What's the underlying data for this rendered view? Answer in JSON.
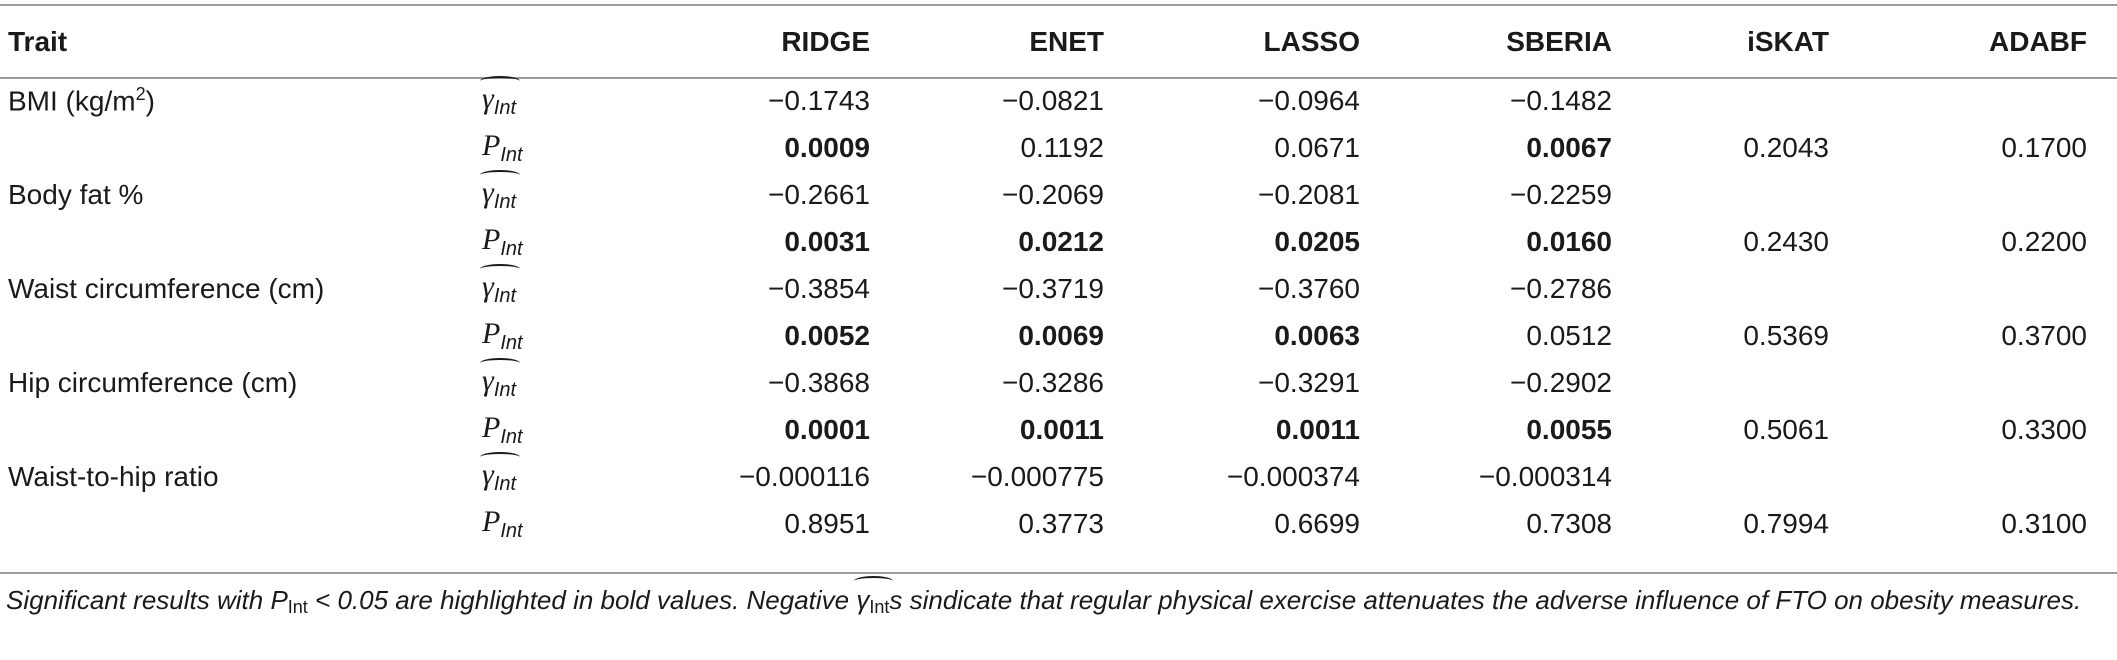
{
  "headers": {
    "trait": "Trait",
    "stat": "",
    "ridge": "RIDGE",
    "enet": "ENET",
    "lasso": "LASSO",
    "sberia": "SBERIA",
    "iskat": "iSKAT",
    "adabf": "ADABF"
  },
  "stat_symbols": {
    "gamma": "γ",
    "p": "P",
    "sub": "Int"
  },
  "rows": [
    {
      "trait": "BMI (kg/m",
      "trait_sup": "2",
      "trait_tail": ")",
      "gamma": [
        "−0.1743",
        "−0.0821",
        "−0.0964",
        "−0.1482",
        "",
        ""
      ],
      "p": [
        "0.0009",
        "0.1192",
        "0.0671",
        "0.0067",
        "0.2043",
        "0.1700"
      ]
    },
    {
      "trait": "Body fat %",
      "trait_sup": "",
      "trait_tail": "",
      "gamma": [
        "−0.2661",
        "−0.2069",
        "−0.2081",
        "−0.2259",
        "",
        ""
      ],
      "p": [
        "0.0031",
        "0.0212",
        "0.0205",
        "0.0160",
        "0.2430",
        "0.2200"
      ]
    },
    {
      "trait": "Waist circumference (cm)",
      "trait_sup": "",
      "trait_tail": "",
      "gamma": [
        "−0.3854",
        "−0.3719",
        "−0.3760",
        "−0.2786",
        "",
        ""
      ],
      "p": [
        "0.0052",
        "0.0069",
        "0.0063",
        "0.0512",
        "0.5369",
        "0.3700"
      ]
    },
    {
      "trait": "Hip circumference (cm)",
      "trait_sup": "",
      "trait_tail": "",
      "gamma": [
        "−0.3868",
        "−0.3286",
        "−0.3291",
        "−0.2902",
        "",
        ""
      ],
      "p": [
        "0.0001",
        "0.0011",
        "0.0011",
        "0.0055",
        "0.5061",
        "0.3300"
      ]
    },
    {
      "trait": "Waist-to-hip ratio",
      "trait_sup": "",
      "trait_tail": "",
      "gamma": [
        "−0.000116",
        "−0.000775",
        "−0.000374",
        "−0.000314",
        "",
        ""
      ],
      "p": [
        "0.8951",
        "0.3773",
        "0.6699",
        "0.7308",
        "0.7994",
        "0.3100"
      ]
    }
  ],
  "bold_cells": [
    [
      true,
      false,
      false,
      true,
      false,
      false
    ],
    [
      true,
      true,
      true,
      true,
      false,
      false
    ],
    [
      true,
      true,
      true,
      false,
      false,
      false
    ],
    [
      true,
      true,
      true,
      true,
      false,
      false
    ],
    [
      false,
      false,
      false,
      false,
      false,
      false
    ]
  ],
  "footnote": {
    "part1": "Significant results with P",
    "sub1": "Int",
    "part2": " < 0.05 are highlighted in bold values. Negative ",
    "gamma": "γ",
    "sub2": "Int",
    "part3": "s sindicate that regular physical exercise attenuates the adverse influence of FTO on obesity measures."
  }
}
